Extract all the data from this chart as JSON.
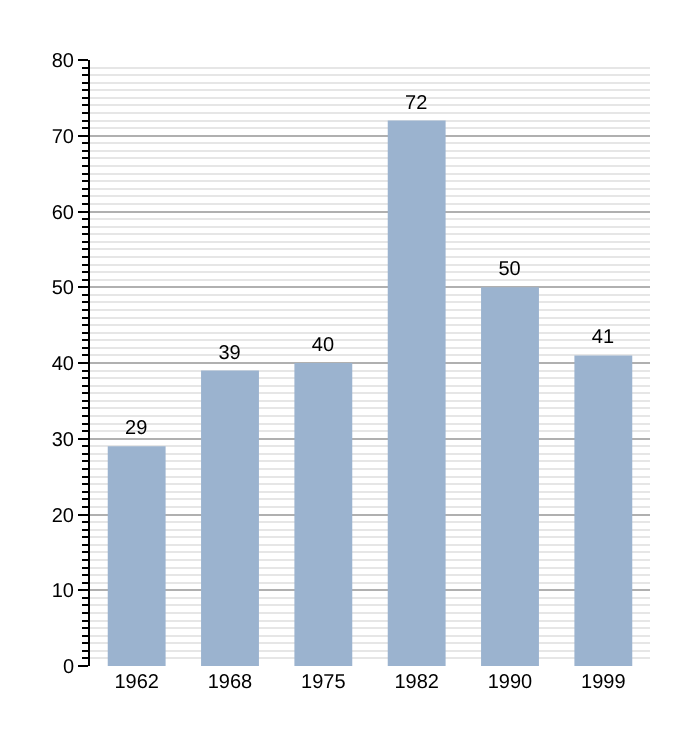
{
  "chart_data": {
    "type": "bar",
    "categories": [
      "1962",
      "1968",
      "1975",
      "1982",
      "1990",
      "1999"
    ],
    "values": [
      29,
      39,
      40,
      72,
      50,
      41
    ],
    "color": "#9bb3cf",
    "data_labels": true,
    "ylim": [
      0,
      80
    ],
    "yticks": [
      0,
      10,
      20,
      30,
      40,
      50,
      60,
      70,
      80
    ],
    "grid": "y"
  }
}
